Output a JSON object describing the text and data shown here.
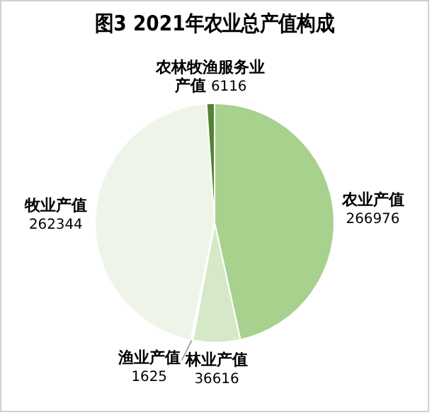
{
  "chart_data": {
    "type": "pie",
    "title": "图3 2021年农业总产值构成",
    "categories": [
      "农业产值",
      "林业产值",
      "渔业产值",
      "牧业产值",
      "农林牧渔服务业产值"
    ],
    "values": [
      266976,
      36616,
      1625,
      262344,
      6116
    ],
    "colors": [
      "#a9d18e",
      "#d5e8c8",
      "#ffffff",
      "#eef5e8",
      "#548235"
    ],
    "data_labels": true,
    "legend": false
  }
}
